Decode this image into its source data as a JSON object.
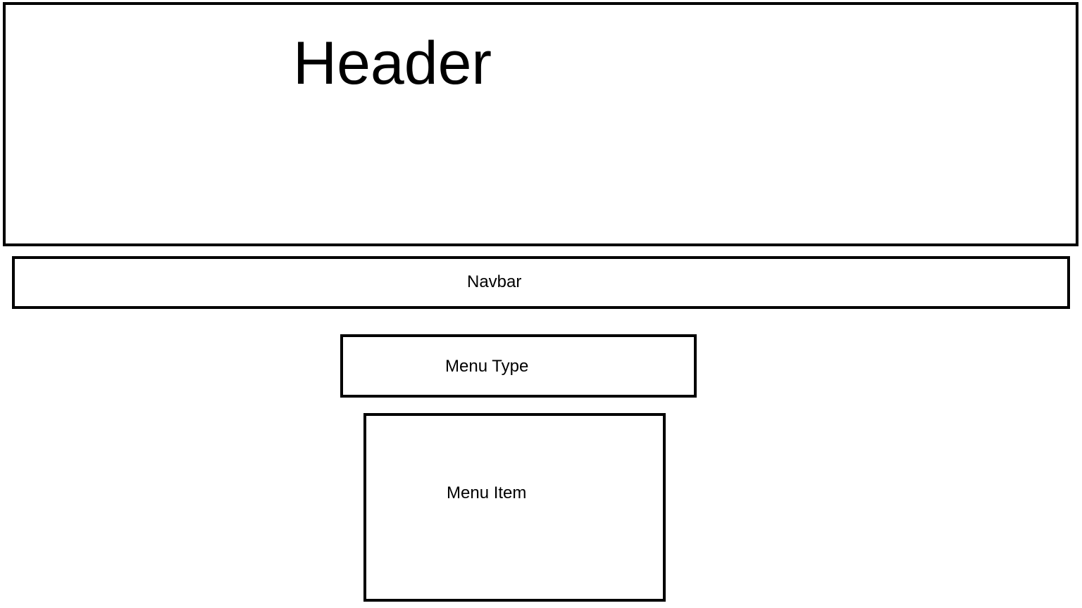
{
  "diagram": {
    "header": {
      "label": "Header"
    },
    "navbar": {
      "label": "Navbar"
    },
    "menu_type": {
      "label": "Menu Type"
    },
    "menu_item": {
      "label": "Menu Item"
    }
  },
  "colors": {
    "border": "#000000",
    "background": "#ffffff",
    "text": "#000000"
  }
}
